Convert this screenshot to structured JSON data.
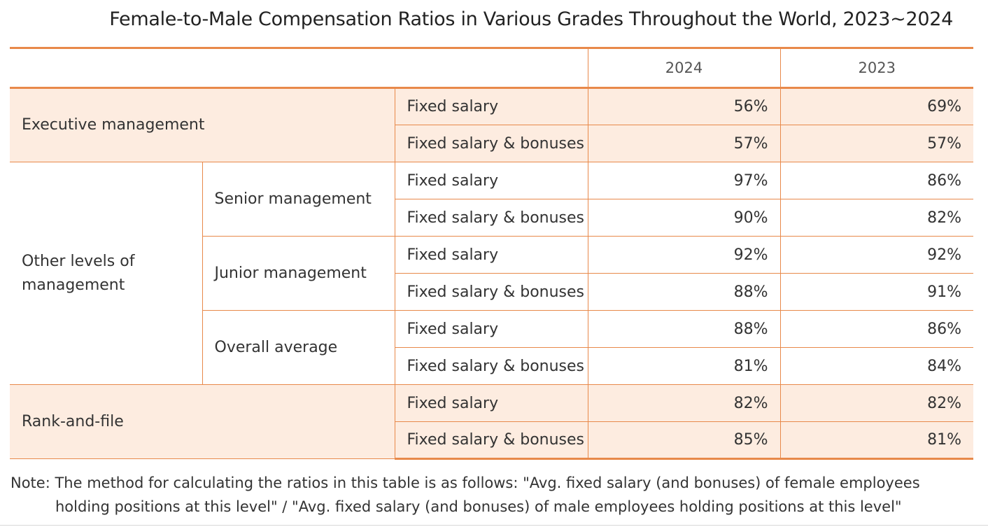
{
  "title": "Female-to-Male Compensation Ratios in Various Grades Throughout the World, 2023~2024",
  "columns": {
    "y2024": "2024",
    "y2023": "2023"
  },
  "pay_types": {
    "fixed": "Fixed salary",
    "fixed_bonus": "Fixed salary & bonuses"
  },
  "groups": {
    "executive": {
      "label": "Executive management",
      "rows": [
        {
          "pay": "Fixed salary",
          "y2024": "56%",
          "y2023": "69%"
        },
        {
          "pay": "Fixed salary & bonuses",
          "y2024": "57%",
          "y2023": "57%"
        }
      ]
    },
    "other": {
      "label_line1": "Other levels of",
      "label_line2": "management",
      "senior": {
        "label": "Senior management",
        "rows": [
          {
            "pay": "Fixed salary",
            "y2024": "97%",
            "y2023": "86%"
          },
          {
            "pay": "Fixed salary & bonuses",
            "y2024": "90%",
            "y2023": "82%"
          }
        ]
      },
      "junior": {
        "label": "Junior management",
        "rows": [
          {
            "pay": "Fixed salary",
            "y2024": "92%",
            "y2023": "92%"
          },
          {
            "pay": "Fixed salary & bonuses",
            "y2024": "88%",
            "y2023": "91%"
          }
        ]
      },
      "overall": {
        "label": "Overall average",
        "rows": [
          {
            "pay": "Fixed salary",
            "y2024": "88%",
            "y2023": "86%"
          },
          {
            "pay": "Fixed salary & bonuses",
            "y2024": "81%",
            "y2023": "84%"
          }
        ]
      }
    },
    "rank": {
      "label": "Rank-and-file",
      "rows": [
        {
          "pay": "Fixed salary",
          "y2024": "82%",
          "y2023": "82%"
        },
        {
          "pay": "Fixed salary & bonuses",
          "y2024": "85%",
          "y2023": "81%"
        }
      ]
    }
  },
  "note": {
    "line1": "Note: The method for calculating the ratios in this table is as follows: \"Avg. fixed salary (and bonuses) of female employees",
    "line2": "holding positions at this level\" / \"Avg. fixed salary (and bonuses) of male employees holding positions at this level\""
  },
  "colors": {
    "accent": "#e8894a",
    "shade": "#fdece0",
    "text": "#333333"
  }
}
